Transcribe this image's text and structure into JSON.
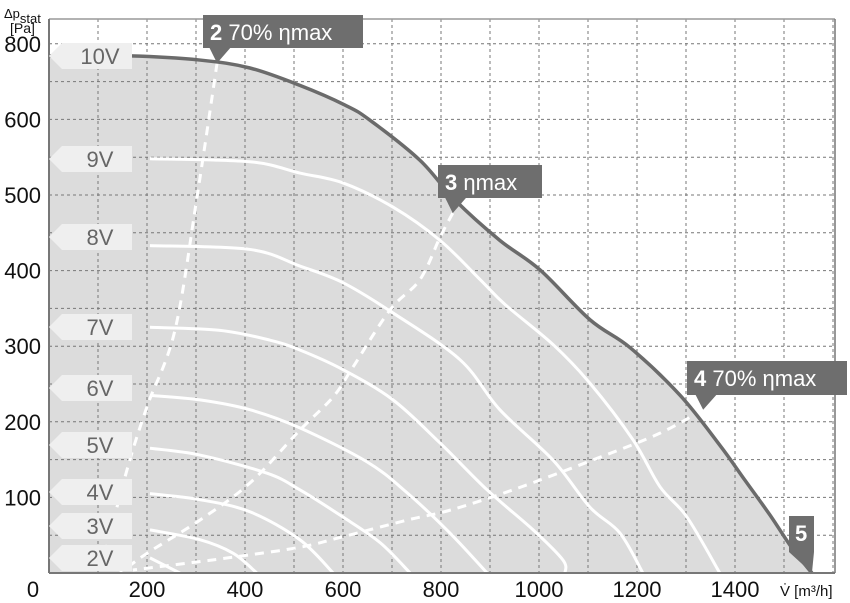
{
  "chart_data": {
    "type": "line",
    "title": "",
    "xlabel": "V̇ [m³/h]",
    "ylabel_main": "Δp",
    "ylabel_sub": "stat",
    "ylabel_unit": "[Pa]",
    "xlim": [
      0,
      1600
    ],
    "ylim": [
      0,
      800
    ],
    "grid": true,
    "x_ticks": [
      "0",
      "200",
      "400",
      "600",
      "800",
      "1000",
      "1200",
      "1400"
    ],
    "y_ticks": [
      "100",
      "200",
      "300",
      "400",
      "500",
      "600",
      "800"
    ],
    "colors": {
      "fill": "#dcdcdc",
      "max_curve": "#6b6b6b",
      "curves": "#ffffff",
      "markers": "#6e6e6e",
      "tags": "#efefef",
      "grid": "#777777"
    },
    "series": [
      {
        "name": "10V",
        "points": [
          [
            0,
            768
          ],
          [
            165,
            768
          ],
          [
            308,
            757
          ],
          [
            410,
            736
          ],
          [
            512,
            690
          ],
          [
            604,
            638
          ],
          [
            655,
            599
          ],
          [
            757,
            546
          ],
          [
            829,
            493
          ],
          [
            920,
            440
          ],
          [
            1002,
            401
          ],
          [
            1104,
            335
          ],
          [
            1186,
            298
          ],
          [
            1288,
            235
          ],
          [
            1369,
            169
          ],
          [
            1420,
            123
          ],
          [
            1471,
            77
          ],
          [
            1512,
            37
          ],
          [
            1543,
            11
          ],
          [
            1557,
            0
          ]
        ]
      },
      {
        "name": "9V",
        "points": [
          [
            206,
            548
          ],
          [
            410,
            544
          ],
          [
            512,
            529
          ],
          [
            600,
            516
          ],
          [
            702,
            484
          ],
          [
            798,
            440
          ],
          [
            880,
            388
          ],
          [
            931,
            355
          ],
          [
            1029,
            302
          ],
          [
            1104,
            251
          ],
          [
            1192,
            176
          ],
          [
            1247,
            114
          ],
          [
            1302,
            74
          ],
          [
            1369,
            0
          ]
        ]
      },
      {
        "name": "8V",
        "points": [
          [
            206,
            433
          ],
          [
            410,
            428
          ],
          [
            512,
            406
          ],
          [
            600,
            384
          ],
          [
            702,
            344
          ],
          [
            839,
            282
          ],
          [
            920,
            216
          ],
          [
            1029,
            149
          ],
          [
            1104,
            87
          ],
          [
            1165,
            53
          ],
          [
            1212,
            0
          ]
        ]
      },
      {
        "name": "7V",
        "points": [
          [
            206,
            325
          ],
          [
            349,
            321
          ],
          [
            451,
            308
          ],
          [
            512,
            295
          ],
          [
            600,
            269
          ],
          [
            702,
            229
          ],
          [
            798,
            172
          ],
          [
            894,
            110
          ],
          [
            988,
            57
          ],
          [
            1049,
            17
          ],
          [
            1053,
            0
          ]
        ]
      },
      {
        "name": "6V",
        "points": [
          [
            206,
            235
          ],
          [
            308,
            229
          ],
          [
            410,
            216
          ],
          [
            512,
            192
          ],
          [
            649,
            147
          ],
          [
            731,
            106
          ],
          [
            818,
            53
          ],
          [
            894,
            0
          ]
        ]
      },
      {
        "name": "5V",
        "points": [
          [
            206,
            165
          ],
          [
            308,
            156
          ],
          [
            445,
            132
          ],
          [
            512,
            110
          ],
          [
            600,
            74
          ],
          [
            676,
            40
          ],
          [
            737,
            0
          ]
        ]
      },
      {
        "name": "4V",
        "points": [
          [
            206,
            105
          ],
          [
            308,
            97
          ],
          [
            410,
            81
          ],
          [
            512,
            44
          ],
          [
            580,
            0
          ]
        ]
      },
      {
        "name": "3V",
        "points": [
          [
            206,
            57
          ],
          [
            308,
            44
          ],
          [
            376,
            26
          ],
          [
            424,
            0
          ]
        ]
      },
      {
        "name": "2V",
        "points": [
          [
            206,
            20
          ],
          [
            267,
            0
          ]
        ]
      }
    ],
    "efficiency_lines": [
      {
        "points": [
          [
            343,
            749
          ],
          [
            302,
            497
          ],
          [
            257,
            321
          ],
          [
            200,
            220
          ],
          [
            159,
            136
          ],
          [
            104,
            0
          ]
        ]
      },
      {
        "points": [
          [
            824,
            476
          ],
          [
            798,
            444
          ],
          [
            757,
            388
          ],
          [
            696,
            348
          ],
          [
            620,
            272
          ],
          [
            580,
            233
          ],
          [
            512,
            189
          ],
          [
            410,
            119
          ],
          [
            308,
            70
          ],
          [
            200,
            26
          ],
          [
            145,
            0
          ]
        ]
      },
      {
        "points": [
          [
            1335,
            216
          ],
          [
            1247,
            185
          ],
          [
            1124,
            153
          ],
          [
            947,
            110
          ],
          [
            818,
            83
          ],
          [
            731,
            70
          ],
          [
            600,
            48
          ],
          [
            512,
            34
          ],
          [
            376,
            21
          ],
          [
            282,
            13
          ],
          [
            171,
            4
          ]
        ]
      }
    ],
    "markers": [
      {
        "num": "2",
        "label": " 70% ηmax",
        "at": [
          343,
          749
        ]
      },
      {
        "num": "3",
        "label": " ηmax",
        "at": [
          824,
          476
        ]
      },
      {
        "num": "4",
        "label": " 70% ηmax",
        "at": [
          1335,
          216
        ]
      },
      {
        "num": "5",
        "label": "",
        "at": [
          1557,
          0
        ]
      }
    ]
  }
}
